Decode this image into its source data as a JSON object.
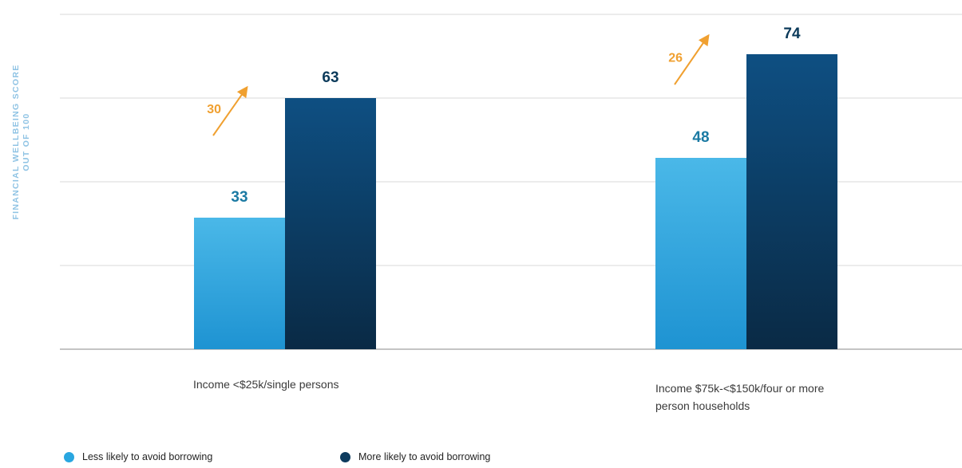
{
  "chart_data": {
    "type": "bar",
    "ylabel_line1": "FINANCIAL WELLBEING SCORE",
    "ylabel_line2": "OUT OF 100",
    "ylim": [
      0,
      84
    ],
    "grid": true,
    "legend_position": "bottom-left",
    "categories": [
      {
        "line1": "Income <$25k/single persons",
        "line2": ""
      },
      {
        "line1": "Income $75k-<$150k/four or more",
        "line2": "person households"
      }
    ],
    "series": [
      {
        "name": "Less likely to avoid borrowing",
        "values": [
          33,
          48
        ],
        "color": "#29a6e0",
        "label_color": "#1b7aa3"
      },
      {
        "name": "More likely to avoid borrowing",
        "values": [
          63,
          74
        ],
        "color": "#0d4a78",
        "label_color": "#0b3a5a"
      }
    ],
    "annotations": [
      {
        "category": 0,
        "text": "30",
        "color": "#f0a030"
      },
      {
        "category": 1,
        "text": "26",
        "color": "#f0a030"
      }
    ]
  }
}
